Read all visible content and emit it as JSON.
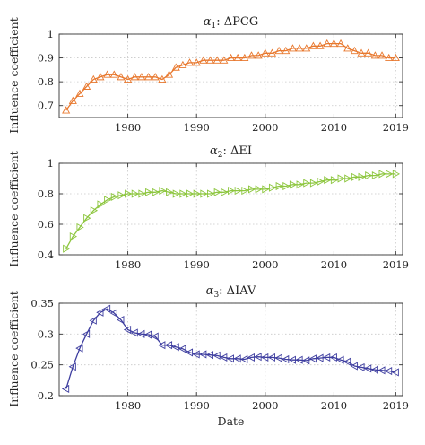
{
  "chart_data": [
    {
      "type": "line",
      "title_greek": "α",
      "title_sub": "1",
      "title_rest": ": ΔPCG",
      "ylabel": "Influence coefficient",
      "xlabel": "",
      "xlim": [
        1970,
        2020
      ],
      "ylim": [
        0.65,
        1.0
      ],
      "xticks": [
        1980,
        1990,
        2000,
        2010,
        2019
      ],
      "yticks": [
        0.7,
        0.8,
        0.9,
        1
      ],
      "grid": true,
      "marker": "triangle-up",
      "color": "#e8782e",
      "series": [
        {
          "x": [
            1971,
            1972,
            1973,
            1974,
            1975,
            1976,
            1977,
            1978,
            1979,
            1980,
            1981,
            1982,
            1983,
            1984,
            1985,
            1986,
            1987,
            1988,
            1989,
            1990,
            1991,
            1992,
            1993,
            1994,
            1995,
            1996,
            1997,
            1998,
            1999,
            2000,
            2001,
            2002,
            2003,
            2004,
            2005,
            2006,
            2007,
            2008,
            2009,
            2010,
            2011,
            2012,
            2013,
            2014,
            2015,
            2016,
            2017,
            2018,
            2019
          ],
          "values": [
            0.68,
            0.72,
            0.75,
            0.78,
            0.81,
            0.82,
            0.83,
            0.83,
            0.82,
            0.81,
            0.82,
            0.82,
            0.82,
            0.82,
            0.81,
            0.83,
            0.86,
            0.87,
            0.88,
            0.88,
            0.89,
            0.89,
            0.89,
            0.89,
            0.9,
            0.9,
            0.9,
            0.91,
            0.91,
            0.92,
            0.92,
            0.93,
            0.93,
            0.94,
            0.94,
            0.94,
            0.95,
            0.95,
            0.96,
            0.96,
            0.96,
            0.94,
            0.93,
            0.92,
            0.92,
            0.91,
            0.91,
            0.9,
            0.9
          ]
        }
      ]
    },
    {
      "type": "line",
      "title_greek": "α",
      "title_sub": "2",
      "title_rest": ": ΔEI",
      "ylabel": "Influence coefficient",
      "xlabel": "",
      "xlim": [
        1970,
        2020
      ],
      "ylim": [
        0.4,
        1.0
      ],
      "xticks": [
        1980,
        1990,
        2000,
        2010,
        2019
      ],
      "yticks": [
        0.4,
        0.6,
        0.8,
        1
      ],
      "grid": true,
      "marker": "triangle-right",
      "color": "#8dc63f",
      "series": [
        {
          "x": [
            1971,
            1972,
            1973,
            1974,
            1975,
            1976,
            1977,
            1978,
            1979,
            1980,
            1981,
            1982,
            1983,
            1984,
            1985,
            1986,
            1987,
            1988,
            1989,
            1990,
            1991,
            1992,
            1993,
            1994,
            1995,
            1996,
            1997,
            1998,
            1999,
            2000,
            2001,
            2002,
            2003,
            2004,
            2005,
            2006,
            2007,
            2008,
            2009,
            2010,
            2011,
            2012,
            2013,
            2014,
            2015,
            2016,
            2017,
            2018,
            2019
          ],
          "values": [
            0.44,
            0.52,
            0.58,
            0.64,
            0.69,
            0.73,
            0.76,
            0.78,
            0.79,
            0.8,
            0.8,
            0.8,
            0.81,
            0.81,
            0.82,
            0.81,
            0.8,
            0.8,
            0.8,
            0.8,
            0.8,
            0.8,
            0.81,
            0.81,
            0.82,
            0.82,
            0.82,
            0.83,
            0.83,
            0.83,
            0.84,
            0.85,
            0.85,
            0.86,
            0.86,
            0.87,
            0.87,
            0.88,
            0.89,
            0.89,
            0.9,
            0.9,
            0.91,
            0.91,
            0.92,
            0.92,
            0.93,
            0.93,
            0.93
          ]
        }
      ]
    },
    {
      "type": "line",
      "title_greek": "α",
      "title_sub": "3",
      "title_rest": ": ΔIAV",
      "ylabel": "Influence coefficient",
      "xlabel": "Date",
      "xlim": [
        1970,
        2020
      ],
      "ylim": [
        0.2,
        0.35
      ],
      "xticks": [
        1980,
        1990,
        2000,
        2010,
        2019
      ],
      "yticks": [
        0.2,
        0.25,
        0.3,
        0.35
      ],
      "grid": true,
      "marker": "triangle-left",
      "color": "#3d3d9f",
      "series": [
        {
          "x": [
            1971,
            1972,
            1973,
            1974,
            1975,
            1976,
            1977,
            1978,
            1979,
            1980,
            1981,
            1982,
            1983,
            1984,
            1985,
            1986,
            1987,
            1988,
            1989,
            1990,
            1991,
            1992,
            1993,
            1994,
            1995,
            1996,
            1997,
            1998,
            1999,
            2000,
            2001,
            2002,
            2003,
            2004,
            2005,
            2006,
            2007,
            2008,
            2009,
            2010,
            2011,
            2012,
            2013,
            2014,
            2015,
            2016,
            2017,
            2018,
            2019
          ],
          "values": [
            0.211,
            0.247,
            0.277,
            0.3,
            0.322,
            0.335,
            0.341,
            0.334,
            0.323,
            0.307,
            0.302,
            0.3,
            0.299,
            0.296,
            0.282,
            0.282,
            0.279,
            0.276,
            0.27,
            0.267,
            0.267,
            0.266,
            0.265,
            0.262,
            0.26,
            0.26,
            0.259,
            0.262,
            0.263,
            0.262,
            0.262,
            0.261,
            0.259,
            0.258,
            0.258,
            0.257,
            0.26,
            0.261,
            0.262,
            0.262,
            0.258,
            0.255,
            0.248,
            0.246,
            0.244,
            0.242,
            0.241,
            0.24,
            0.238
          ]
        }
      ]
    }
  ]
}
